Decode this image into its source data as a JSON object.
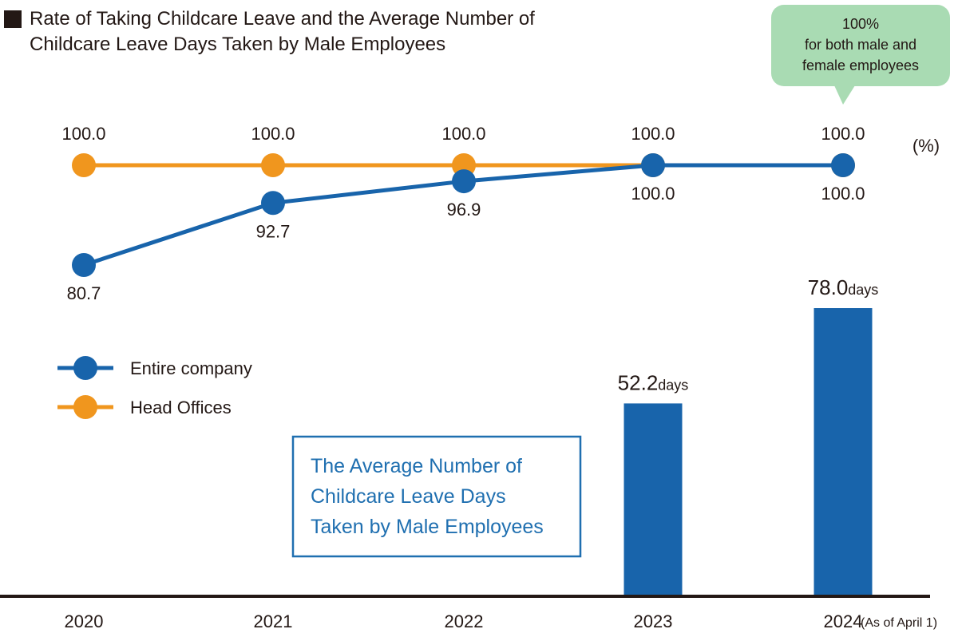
{
  "title": {
    "line1": "Rate of Taking Childcare Leave and the Average Number of",
    "line2": "Childcare Leave Days Taken by Male Employees"
  },
  "callout": {
    "line1": "100%",
    "line2": "for both male and",
    "line3": "female employees"
  },
  "unit": "(%)",
  "legend": {
    "entire": "Entire company",
    "head": "Head Offices"
  },
  "box": {
    "line1": "The Average Number of",
    "line2": "Childcare Leave Days",
    "line3": "Taken by Male Employees"
  },
  "x_note": "(As of April 1)",
  "colors": {
    "entire": "#1864ab",
    "head": "#f0961e",
    "bar": "#1864ab",
    "callout_bg": "#a9dbb3",
    "box_border": "#1f6fb0"
  },
  "chart_data": [
    {
      "type": "line",
      "title": "Rate of Taking Childcare Leave and the Average Number of Childcare Leave Days Taken by Male Employees",
      "x": [
        "2020",
        "2021",
        "2022",
        "2023",
        "2024"
      ],
      "series": [
        {
          "name": "Head Offices",
          "values": [
            100.0,
            100.0,
            100.0,
            100.0,
            100.0
          ],
          "labels": [
            "100.0",
            "100.0",
            "100.0",
            "100.0",
            "100.0"
          ]
        },
        {
          "name": "Entire company",
          "values": [
            80.7,
            92.7,
            96.9,
            100.0,
            100.0
          ],
          "labels": [
            "80.7",
            "92.7",
            "96.9",
            "100.0",
            "100.0"
          ]
        }
      ],
      "ylabel": "(%)"
    },
    {
      "type": "bar",
      "title": "The Average Number of Childcare Leave Days Taken by Male Employees",
      "categories": [
        "2023",
        "2024"
      ],
      "values": [
        52.2,
        78.0
      ],
      "value_labels": [
        "52.2",
        "78.0"
      ],
      "unit_label": "days"
    }
  ]
}
